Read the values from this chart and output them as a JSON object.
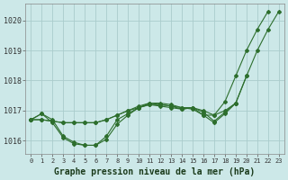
{
  "background_color": "#cce8e8",
  "grid_color": "#aacccc",
  "line_color": "#2d6e2d",
  "marker": "D",
  "markersize": 2.0,
  "linewidth": 0.8,
  "title": "Graphe pression niveau de la mer (hPa)",
  "title_fontsize": 7,
  "xlim": [
    -0.5,
    23.5
  ],
  "ylim": [
    1015.55,
    1020.55
  ],
  "yticks": [
    1016,
    1017,
    1018,
    1019,
    1020
  ],
  "xticks": [
    0,
    1,
    2,
    3,
    4,
    5,
    6,
    7,
    8,
    9,
    10,
    11,
    12,
    13,
    14,
    15,
    16,
    17,
    18,
    19,
    20,
    21,
    22,
    23
  ],
  "series": [
    [
      1016.7,
      1016.9,
      1016.6,
      1016.1,
      1015.9,
      1015.85,
      1015.85,
      1016.05,
      1016.55,
      1016.85,
      1017.1,
      1017.2,
      1017.15,
      1017.1,
      1017.05,
      1017.1,
      1017.0,
      1016.85,
      1017.0,
      1017.25,
      1018.15,
      1019.0,
      1019.7,
      1020.3
    ],
    [
      1016.7,
      1016.7,
      1016.65,
      1016.6,
      1016.6,
      1016.6,
      1016.6,
      1016.7,
      1016.85,
      1017.0,
      1017.1,
      1017.2,
      1017.2,
      1017.15,
      1017.1,
      1017.05,
      1016.85,
      1016.85,
      1017.3,
      1018.15,
      1019.0,
      1019.7,
      1020.3,
      null
    ],
    [
      1016.7,
      1016.7,
      1016.65,
      1016.6,
      1016.6,
      1016.6,
      1016.6,
      1016.7,
      1016.85,
      1017.0,
      1017.15,
      1017.25,
      1017.25,
      1017.2,
      1017.1,
      1017.1,
      1016.85,
      1016.6,
      1016.9,
      1017.25,
      1018.15,
      null,
      null,
      null
    ],
    [
      1016.7,
      1016.9,
      1016.7,
      1016.15,
      1015.95,
      1015.85,
      1015.85,
      1016.15,
      1016.7,
      1016.9,
      1017.1,
      1017.25,
      1017.2,
      1017.15,
      1017.05,
      1017.1,
      1016.95,
      1016.65,
      1016.95,
      1017.25,
      null,
      null,
      null,
      null
    ]
  ]
}
